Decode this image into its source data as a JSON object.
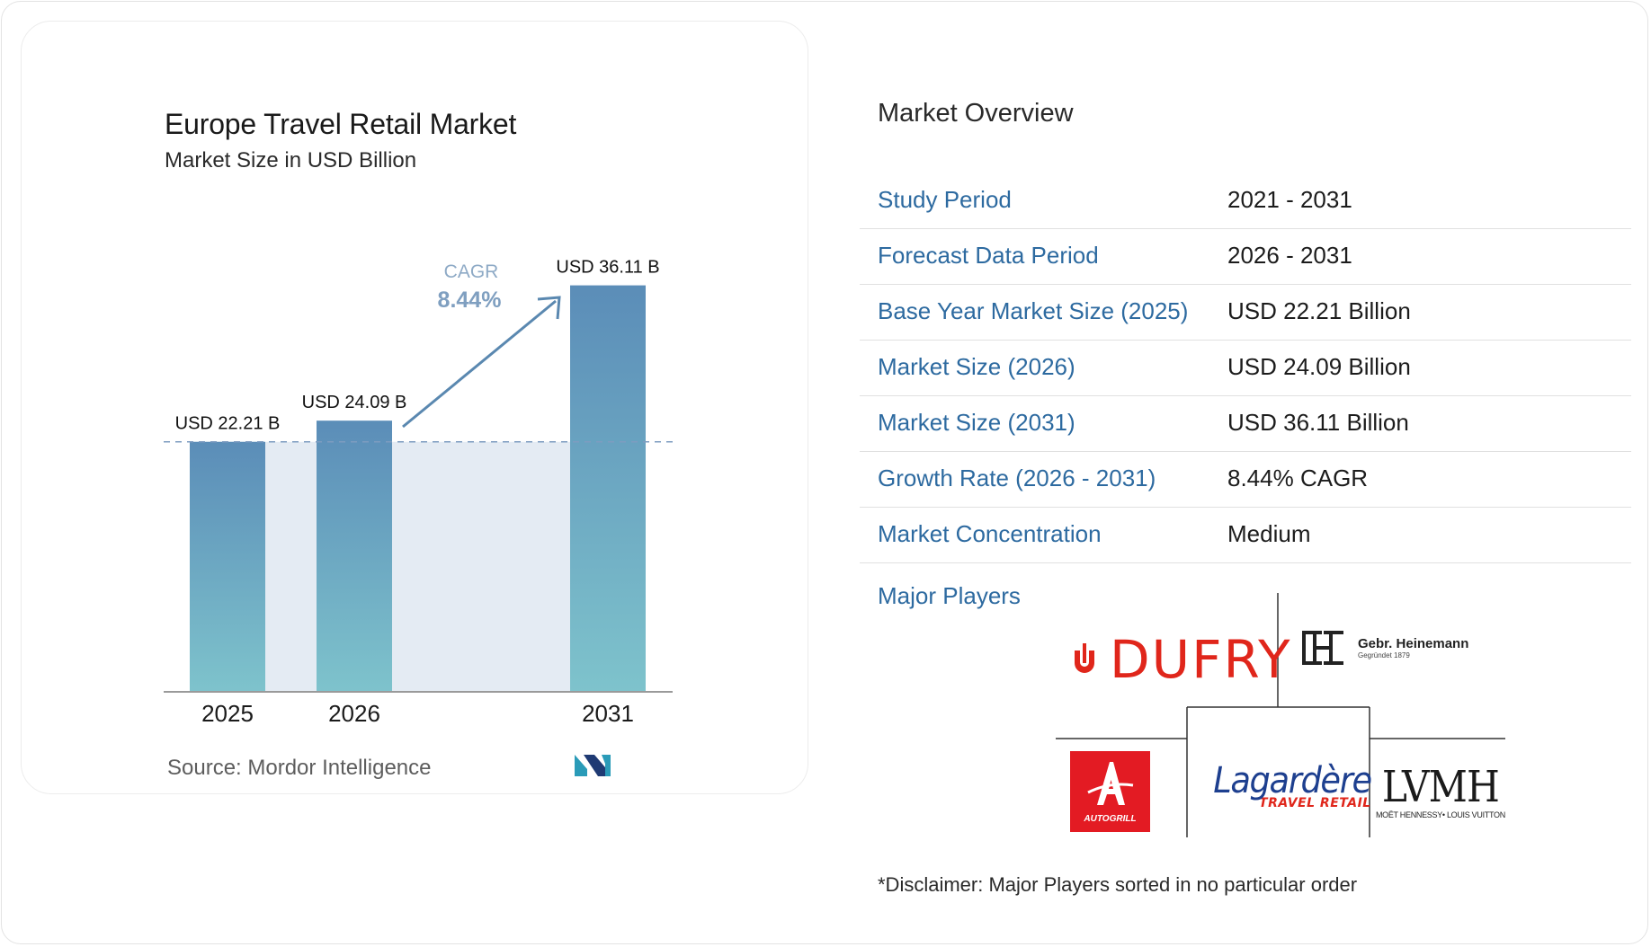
{
  "chart": {
    "title": "Europe Travel Retail Market",
    "subtitle": "Market Size in USD Billion",
    "cagr_label": "CAGR",
    "cagr_value": "8.44%",
    "source": "Source:  Mordor Intelligence"
  },
  "chart_data": {
    "type": "bar",
    "categories": [
      "2025",
      "2026",
      "2031"
    ],
    "values": [
      22.21,
      24.09,
      36.11
    ],
    "data_labels": [
      "USD 22.21 B",
      "USD 24.09 B",
      "USD 36.11 B"
    ],
    "title": "Europe Travel Retail Market",
    "subtitle": "Market Size in USD Billion",
    "xlabel": "",
    "ylabel": "",
    "annotation": "CAGR 8.44%",
    "grid": false,
    "colors": {
      "bar_top": "#5b8db8",
      "bar_bottom": "#7ec3cc",
      "shade": "#e4ebf3",
      "arrow": "#5a88b0"
    }
  },
  "overview": {
    "title": "Market Overview",
    "rows": [
      {
        "label": "Study Period",
        "value": "2021 - 2031"
      },
      {
        "label": "Forecast Data Period",
        "value": "2026 - 2031"
      },
      {
        "label": "Base Year Market Size (2025)",
        "value": "USD 22.21 Billion"
      },
      {
        "label": "Market Size (2026)",
        "value": "USD 24.09 Billion"
      },
      {
        "label": "Market Size (2031)",
        "value": "USD 36.11 Billion"
      },
      {
        "label": "Growth Rate (2026 - 2031)",
        "value": "8.44% CAGR"
      },
      {
        "label": "Market Concentration",
        "value": "Medium"
      }
    ],
    "players_label": "Major Players",
    "players": {
      "dufry": "DUFRY",
      "heinemann_name": "Gebr. Heinemann",
      "heinemann_sub": "Gegründet 1879",
      "autogrill": "AUTOGRILL",
      "lagardere_name": "Lagardère",
      "lagardere_sub": "TRAVEL RETAIL",
      "lvmh_name": "LVMH",
      "lvmh_sub": "MOËT HENNESSY• LOUIS VUITTON"
    },
    "disclaimer": "*Disclaimer: Major Players sorted in no particular order"
  }
}
